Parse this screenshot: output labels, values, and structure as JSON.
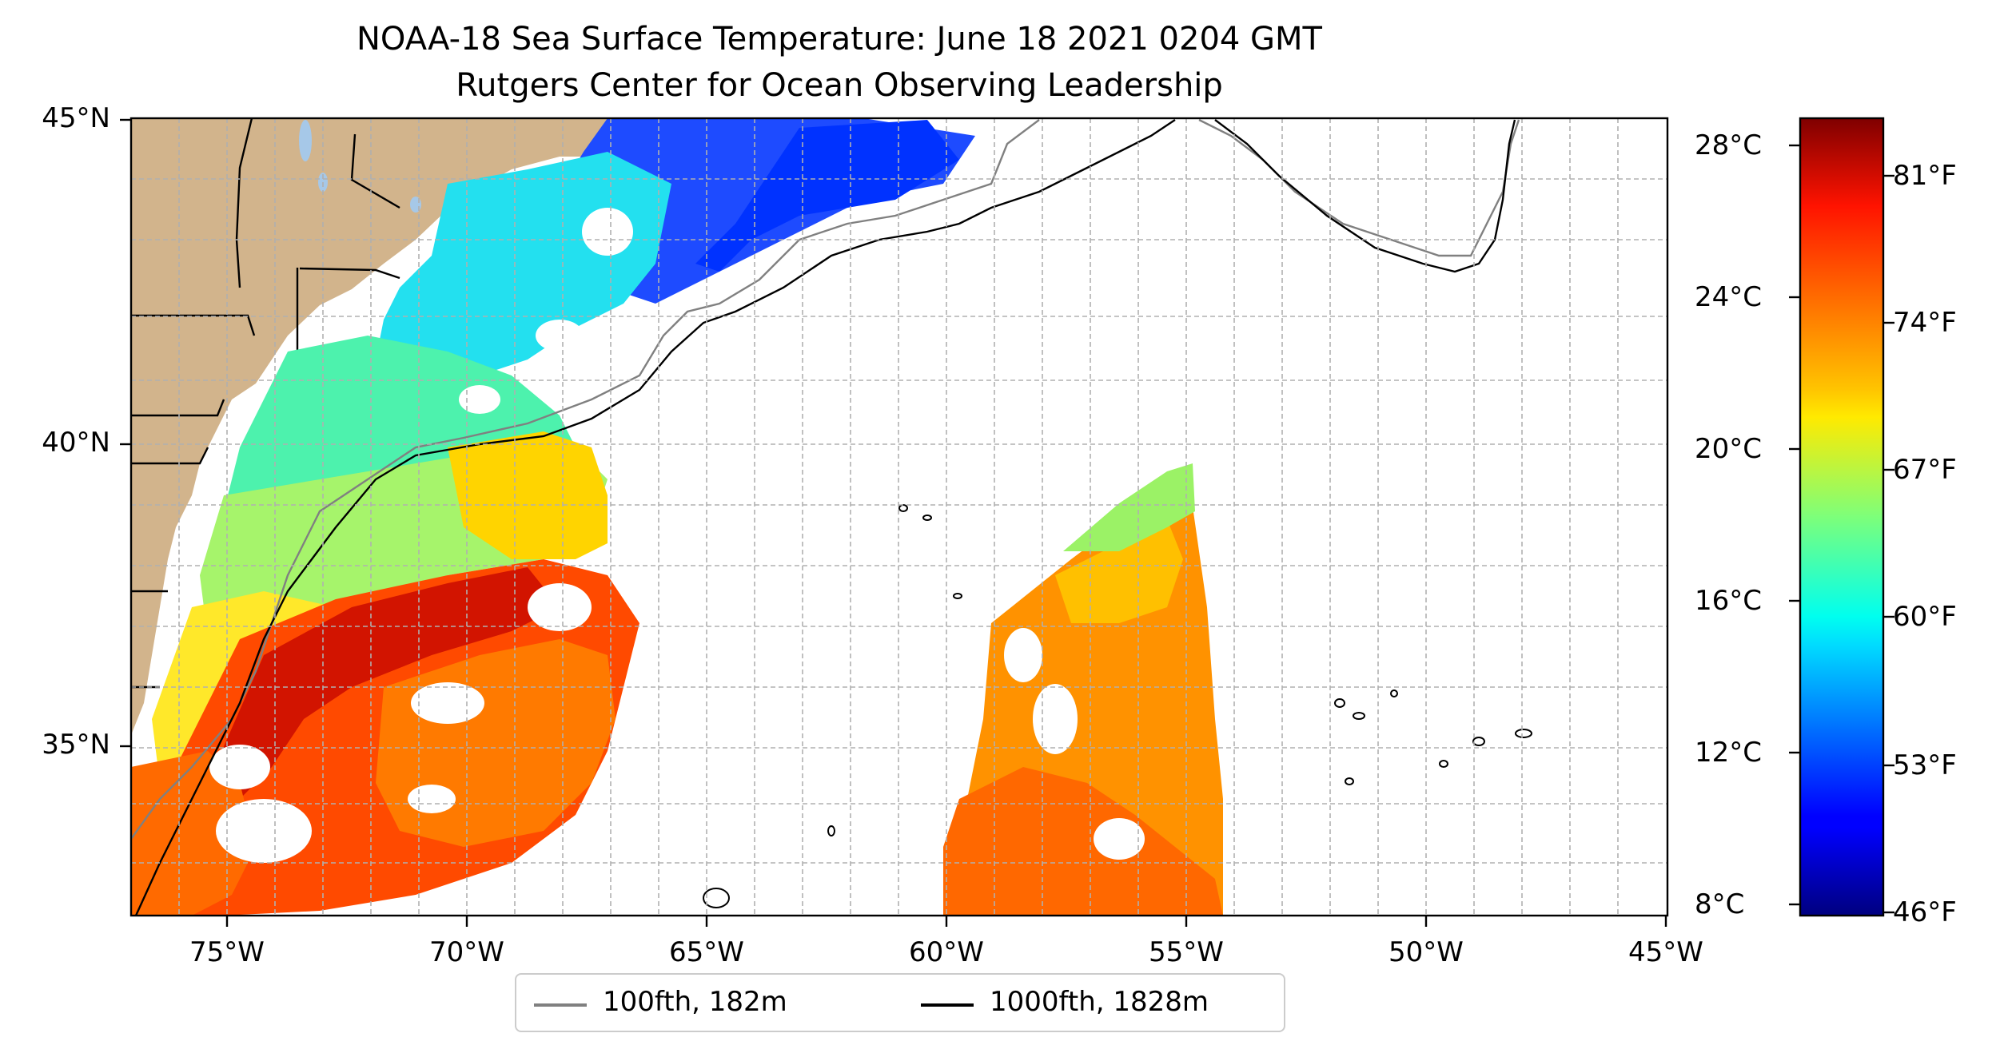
{
  "figure": {
    "title_line1": "NOAA-18 Sea Surface Temperature: June 18 2021 0204 GMT",
    "title_line2": "Rutgers Center for Ocean Observing Leadership"
  },
  "map": {
    "lon_range": [
      -77,
      -45
    ],
    "lat_range": [
      32.3,
      45
    ],
    "x_ticks": [
      "75°W",
      "70°W",
      "65°W",
      "60°W",
      "55°W",
      "50°W",
      "45°W"
    ],
    "y_ticks": [
      "45°N",
      "40°N",
      "35°N"
    ],
    "land_color": "#d2b48c",
    "grid": true
  },
  "colorbar": {
    "colormap": "jet",
    "range_c": [
      7.7,
      28.7
    ],
    "celsius_ticks": [
      "28°C",
      "24°C",
      "20°C",
      "16°C",
      "12°C",
      "8°C"
    ],
    "fahrenheit_ticks": [
      "81°F",
      "74°F",
      "67°F",
      "60°F",
      "53°F",
      "46°F"
    ]
  },
  "legend": {
    "items": [
      {
        "label": "100fth, 182m",
        "color": "#808080"
      },
      {
        "label": "1000fth, 1828m",
        "color": "#000000"
      }
    ]
  }
}
